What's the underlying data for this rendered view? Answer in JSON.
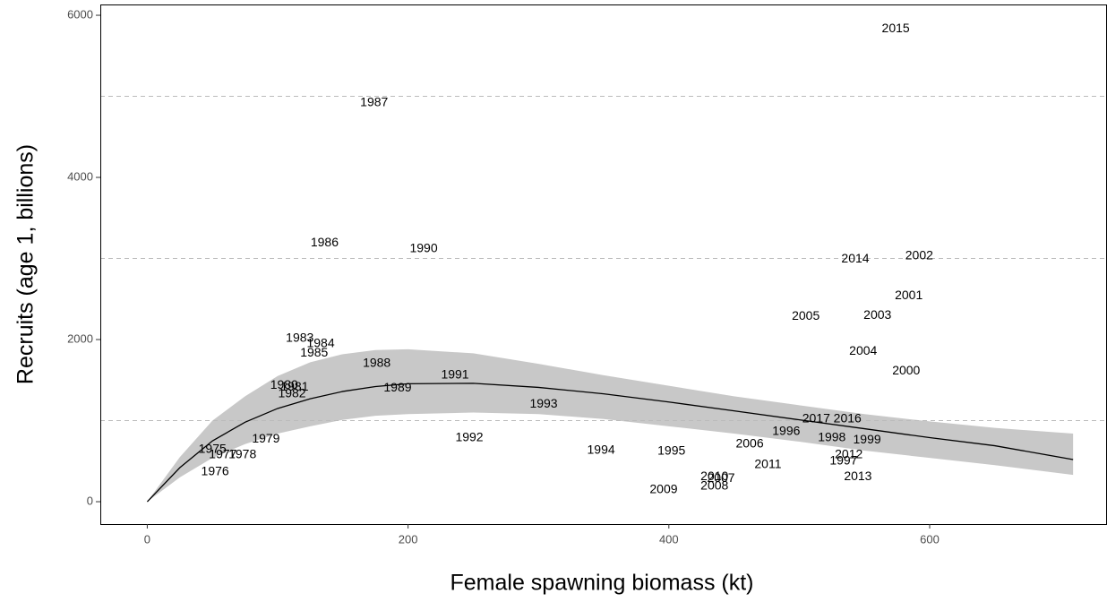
{
  "chart_data": {
    "type": "scatter",
    "x_label": "Female spawning biomass (kt)",
    "y_label": "Recruits (age 1, billions)",
    "labels": [
      "1987",
      "2015",
      "1986",
      "1990",
      "2014",
      "2002",
      "2001",
      "2005",
      "2003",
      "1983",
      "1984",
      "1985",
      "2004",
      "1988",
      "2000",
      "1991",
      "1980",
      "1981",
      "1989",
      "1982",
      "1993",
      "2017",
      "2016",
      "1996",
      "1998",
      "1999",
      "1979",
      "1992",
      "2006",
      "1994",
      "1995",
      "1975",
      "1977",
      "1978",
      "2012",
      "1997",
      "2011",
      "1976",
      "2013",
      "2010",
      "2007",
      "2008",
      "2009"
    ],
    "x": [
      174,
      574,
      136,
      212,
      543,
      592,
      584,
      505,
      560,
      117,
      133,
      128,
      549,
      176,
      582,
      236,
      105,
      113,
      192,
      111,
      304,
      513,
      537,
      490,
      525,
      552,
      91,
      247,
      462,
      348,
      402,
      50,
      58,
      73,
      538,
      534,
      476,
      52,
      545,
      435,
      440,
      435,
      396
    ],
    "y": [
      4917,
      5834,
      3193,
      3116,
      2994,
      3028,
      2541,
      2287,
      2298,
      2011,
      1945,
      1834,
      1856,
      1702,
      1613,
      1558,
      1436,
      1414,
      1403,
      1326,
      1204,
      1017,
      1017,
      862,
      785,
      762,
      773,
      785,
      707,
      630,
      619,
      641,
      575,
      575,
      575,
      497,
      453,
      365,
      309,
      309,
      287,
      188,
      144
    ],
    "label_color": "#000000",
    "fit": {
      "x": [
        0,
        25,
        50,
        75,
        100,
        125,
        150,
        175,
        200,
        250,
        300,
        350,
        400,
        450,
        500,
        550,
        600,
        650,
        710
      ],
      "y": [
        0,
        420,
        750,
        980,
        1150,
        1270,
        1360,
        1420,
        1455,
        1460,
        1410,
        1330,
        1230,
        1120,
        1010,
        900,
        790,
        690,
        520
      ],
      "lower": [
        0,
        300,
        540,
        710,
        840,
        930,
        1010,
        1060,
        1080,
        1100,
        1080,
        1020,
        930,
        840,
        740,
        630,
        540,
        450,
        330
      ],
      "upper": [
        0,
        550,
        1000,
        1300,
        1550,
        1720,
        1820,
        1870,
        1880,
        1830,
        1700,
        1560,
        1430,
        1300,
        1190,
        1080,
        990,
        910,
        840
      ],
      "line_color": "#000000",
      "band_color": "#c8c8c8"
    },
    "hlines": [
      1000,
      3000,
      5000
    ],
    "xlim": [
      -36,
      736
    ],
    "ylim": [
      -276,
      6133
    ],
    "xticks": [
      0,
      200,
      400,
      600
    ],
    "yticks": [
      0,
      2000,
      4000,
      6000
    ]
  }
}
